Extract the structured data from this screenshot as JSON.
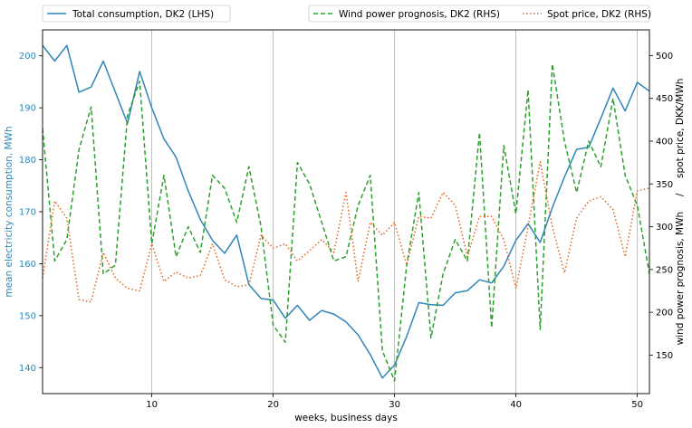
{
  "chart_data": {
    "type": "line",
    "xlabel": "weeks, business days",
    "ylabel_left": "mean electricity consumption, MWh",
    "ylabel_right": "wind power prognosis, MWh     /     spot price, DKK/MWh",
    "xlim": [
      1,
      51
    ],
    "ylim_left": [
      135,
      205
    ],
    "ylim_right": [
      105,
      530
    ],
    "x_ticks": [
      10,
      20,
      30,
      40,
      50
    ],
    "y_ticks_left": [
      140,
      150,
      160,
      170,
      180,
      190,
      200
    ],
    "y_ticks_right": [
      150,
      200,
      250,
      300,
      350,
      400,
      450,
      500
    ],
    "grid": "vertical",
    "legend": {
      "left": "upper-left, outside top",
      "right": "upper-right, outside top"
    },
    "colors": {
      "consumption": "#2e86b9",
      "wind": "#2ca02c",
      "spot": "#e8621a",
      "left_axis_text": "#2e86b9"
    },
    "series": [
      {
        "name": "Total consumption, DK2 (LHS)",
        "axis": "left",
        "style": "solid",
        "x": [
          1,
          2,
          3,
          4,
          5,
          6,
          7,
          8,
          9,
          10,
          11,
          12,
          13,
          14,
          15,
          16,
          17,
          18,
          19,
          20,
          21,
          22,
          23,
          24,
          25,
          26,
          27,
          28,
          29,
          30,
          31,
          32,
          33,
          34,
          35,
          36,
          37,
          38,
          39,
          40,
          41,
          42,
          43,
          44,
          45,
          46,
          47,
          48,
          49,
          50,
          51
        ],
        "values": [
          202,
          199,
          202,
          193,
          194,
          199,
          193,
          187,
          197,
          190,
          184,
          180.5,
          174,
          168.5,
          164.5,
          162,
          165.5,
          156,
          153.3,
          153,
          149.5,
          152,
          149.1,
          151,
          150.3,
          148.8,
          146.3,
          142.5,
          138,
          140.5,
          146,
          152.5,
          152.1,
          152,
          154.4,
          154.8,
          156.9,
          156.3,
          159.5,
          164.5,
          167.7,
          164.1,
          170.8,
          176.7,
          182,
          182.4,
          188,
          193.8,
          189.4,
          194.9,
          193.2
        ]
      },
      {
        "name": "Wind power prognosis, DK2 (RHS)",
        "axis": "right",
        "style": "dashed",
        "x": [
          1,
          2,
          3,
          4,
          5,
          6,
          7,
          8,
          9,
          10,
          11,
          12,
          13,
          14,
          15,
          16,
          17,
          18,
          19,
          20,
          21,
          22,
          23,
          24,
          25,
          26,
          27,
          28,
          29,
          30,
          31,
          32,
          33,
          34,
          35,
          36,
          37,
          38,
          39,
          40,
          41,
          42,
          43,
          44,
          45,
          46,
          47,
          48,
          49,
          50,
          51
        ],
        "values": [
          415,
          260,
          285,
          390,
          440,
          245,
          255,
          430,
          470,
          280,
          360,
          265,
          300,
          270,
          360,
          345,
          305,
          370,
          300,
          185,
          165,
          375,
          350,
          305,
          260,
          265,
          325,
          360,
          155,
          120,
          255,
          340,
          170,
          245,
          285,
          260,
          410,
          182,
          395,
          315,
          460,
          180,
          490,
          400,
          340,
          400,
          370,
          450,
          360,
          325,
          245
        ]
      },
      {
        "name": "Spot price, DK2 (RHS)",
        "axis": "right",
        "style": "dotted",
        "x": [
          1,
          2,
          3,
          4,
          5,
          6,
          7,
          8,
          9,
          10,
          11,
          12,
          13,
          14,
          15,
          16,
          17,
          18,
          19,
          20,
          21,
          22,
          23,
          24,
          25,
          26,
          27,
          28,
          29,
          30,
          31,
          32,
          33,
          34,
          35,
          36,
          37,
          38,
          39,
          40,
          41,
          42,
          43,
          44,
          45,
          46,
          47,
          48,
          49,
          50,
          51
        ],
        "values": [
          240,
          330,
          310,
          215,
          212,
          270,
          240,
          228,
          225,
          280,
          236,
          247,
          240,
          243,
          280,
          238,
          230,
          232,
          290,
          275,
          280,
          260,
          272,
          285,
          270,
          340,
          236,
          305,
          290,
          305,
          255,
          312,
          310,
          340,
          325,
          265,
          312,
          312,
          285,
          228,
          300,
          376,
          300,
          246,
          310,
          330,
          335,
          320,
          265,
          342,
          345
        ]
      }
    ]
  }
}
